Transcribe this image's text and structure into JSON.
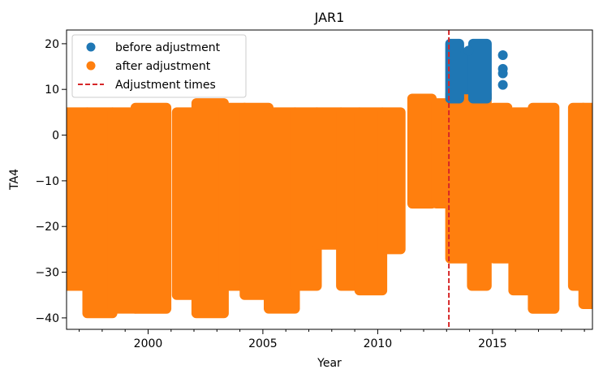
{
  "chart_data": {
    "type": "scatter",
    "title": "JAR1",
    "xlabel": "Year",
    "ylabel": "TA4",
    "xlim": [
      1996.45,
      2019.35
    ],
    "ylim": [
      -42.5,
      23
    ],
    "xticks": [
      2000,
      2005,
      2010,
      2015
    ],
    "xtick_labels": [
      "2000",
      "2005",
      "2010",
      "2015"
    ],
    "yticks": [
      20,
      10,
      0,
      -10,
      -20,
      -30,
      -40
    ],
    "ytick_labels": [
      "20",
      "10",
      "0",
      "−10",
      "−20",
      "−30",
      "−40"
    ],
    "grid": false,
    "legend_position": "top-left",
    "legend": [
      {
        "label": "before adjustment",
        "kind": "marker",
        "color": "#1f77b4"
      },
      {
        "label": "after adjustment",
        "kind": "marker",
        "color": "#ff7f0e"
      },
      {
        "label": "Adjustment times",
        "kind": "dashed-line",
        "color": "#d62728"
      }
    ],
    "series": [
      {
        "name": "before adjustment",
        "color": "#1f77b4",
        "clusters": [
          {
            "x": [
              2013.15,
              2013.55
            ],
            "y": [
              8,
              20
            ]
          },
          {
            "x": [
              2013.8,
              2014.05
            ],
            "y": [
              10,
              18
            ]
          },
          {
            "x": [
              2014.15,
              2014.75
            ],
            "y": [
              8,
              20
            ]
          }
        ],
        "points": [
          {
            "x": 2013.95,
            "y": 18.5
          },
          {
            "x": 2015.45,
            "y": 17.5
          },
          {
            "x": 2015.45,
            "y": 14.5
          },
          {
            "x": 2015.45,
            "y": 13.5
          },
          {
            "x": 2015.45,
            "y": 11
          }
        ]
      },
      {
        "name": "after adjustment",
        "color": "#ff7f0e",
        "segments": [
          {
            "x": [
              1996.45,
              1997.35
            ],
            "y": [
              -33,
              5
            ]
          },
          {
            "x": [
              1997.35,
              1998.45
            ],
            "y": [
              -39,
              5
            ]
          },
          {
            "x": [
              1998.45,
              1999.45
            ],
            "y": [
              -38,
              5
            ]
          },
          {
            "x": [
              1999.45,
              2000.8
            ],
            "y": [
              -38,
              6
            ]
          },
          {
            "x": [
              2001.25,
              2002.1
            ],
            "y": [
              -35,
              5
            ]
          },
          {
            "x": [
              2002.1,
              2003.3
            ],
            "y": [
              -39,
              7
            ]
          },
          {
            "x": [
              2003.3,
              2004.2
            ],
            "y": [
              -33,
              6
            ]
          },
          {
            "x": [
              2004.2,
              2005.25
            ],
            "y": [
              -35,
              6
            ]
          },
          {
            "x": [
              2005.25,
              2006.4
            ],
            "y": [
              -38,
              5
            ]
          },
          {
            "x": [
              2006.4,
              2007.35
            ],
            "y": [
              -33,
              5
            ]
          },
          {
            "x": [
              2007.35,
              2008.4
            ],
            "y": [
              -24,
              5
            ]
          },
          {
            "x": [
              2008.4,
              2009.2
            ],
            "y": [
              -33,
              5
            ]
          },
          {
            "x": [
              2009.2,
              2010.2
            ],
            "y": [
              -34,
              5
            ]
          },
          {
            "x": [
              2010.2,
              2011.0
            ],
            "y": [
              -25,
              5
            ]
          },
          {
            "x": [
              2011.5,
              2012.35
            ],
            "y": [
              -15,
              8
            ]
          },
          {
            "x": [
              2012.55,
              2013.05
            ],
            "y": [
              -15,
              7
            ]
          },
          {
            "x": [
              2013.15,
              2014.1
            ],
            "y": [
              -27,
              9
            ]
          },
          {
            "x": [
              2014.1,
              2014.75
            ],
            "y": [
              -33,
              9
            ]
          },
          {
            "x": [
              2015.05,
              2015.65
            ],
            "y": [
              -27,
              6
            ]
          },
          {
            "x": [
              2015.9,
              2016.75
            ],
            "y": [
              -34,
              5
            ]
          },
          {
            "x": [
              2016.75,
              2017.7
            ],
            "y": [
              -38,
              6
            ]
          },
          {
            "x": [
              2018.5,
              2018.95
            ],
            "y": [
              -33,
              6
            ]
          },
          {
            "x": [
              2018.95,
              2019.35
            ],
            "y": [
              -37,
              6
            ]
          }
        ]
      }
    ],
    "adjustment_times": [
      2013.1
    ]
  }
}
